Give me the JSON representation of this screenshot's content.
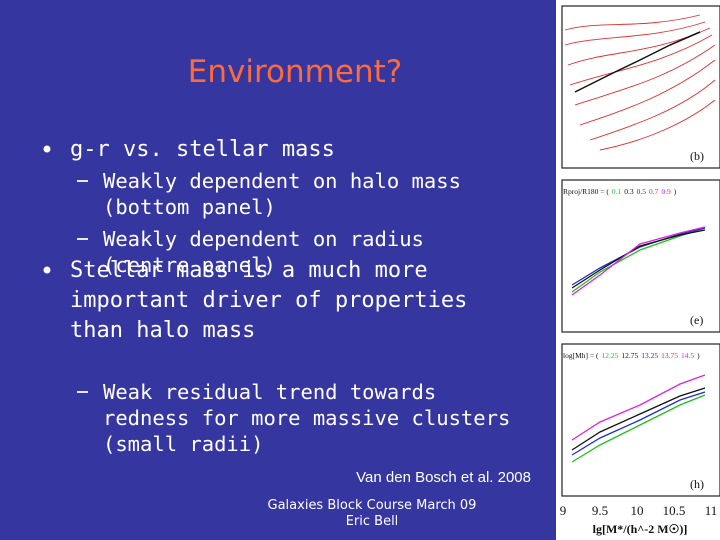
{
  "title": "Environment?",
  "bullets": [
    {
      "lines": [
        "g-r vs. stellar mass"
      ],
      "sub": [
        [
          "Weakly dependent on halo mass",
          "(bottom panel)"
        ],
        [
          "Weakly dependent on radius",
          "(centre panel)"
        ]
      ]
    },
    {
      "lines": [
        "Stellar mass is a much more",
        "important driver of properties",
        "than halo mass"
      ],
      "sub": [
        [
          "Weak residual trend towards",
          "redness for more massive clusters",
          "(small radii)"
        ]
      ]
    }
  ],
  "citation": "Van den Bosch et al. 2008",
  "footer": [
    "Galaxies Block Course March 09",
    "Eric Bell"
  ],
  "figure": {
    "panel_labels": [
      "(b)",
      "(e)",
      "(h)"
    ],
    "legend_e": [
      "Rproj/R180 = (",
      "0.1",
      "0.3",
      "0.5",
      "0.7",
      "0.9",
      ")"
    ],
    "legend_h": [
      "log[Mh] = (",
      "12.25",
      "12.75",
      "13.25",
      "13.75",
      "14.5",
      ")"
    ],
    "x_ticks": [
      "9",
      "9.5",
      "10",
      "10.5",
      "11"
    ],
    "x_label": "lg[M*/(h^-2 M☉)]"
  }
}
